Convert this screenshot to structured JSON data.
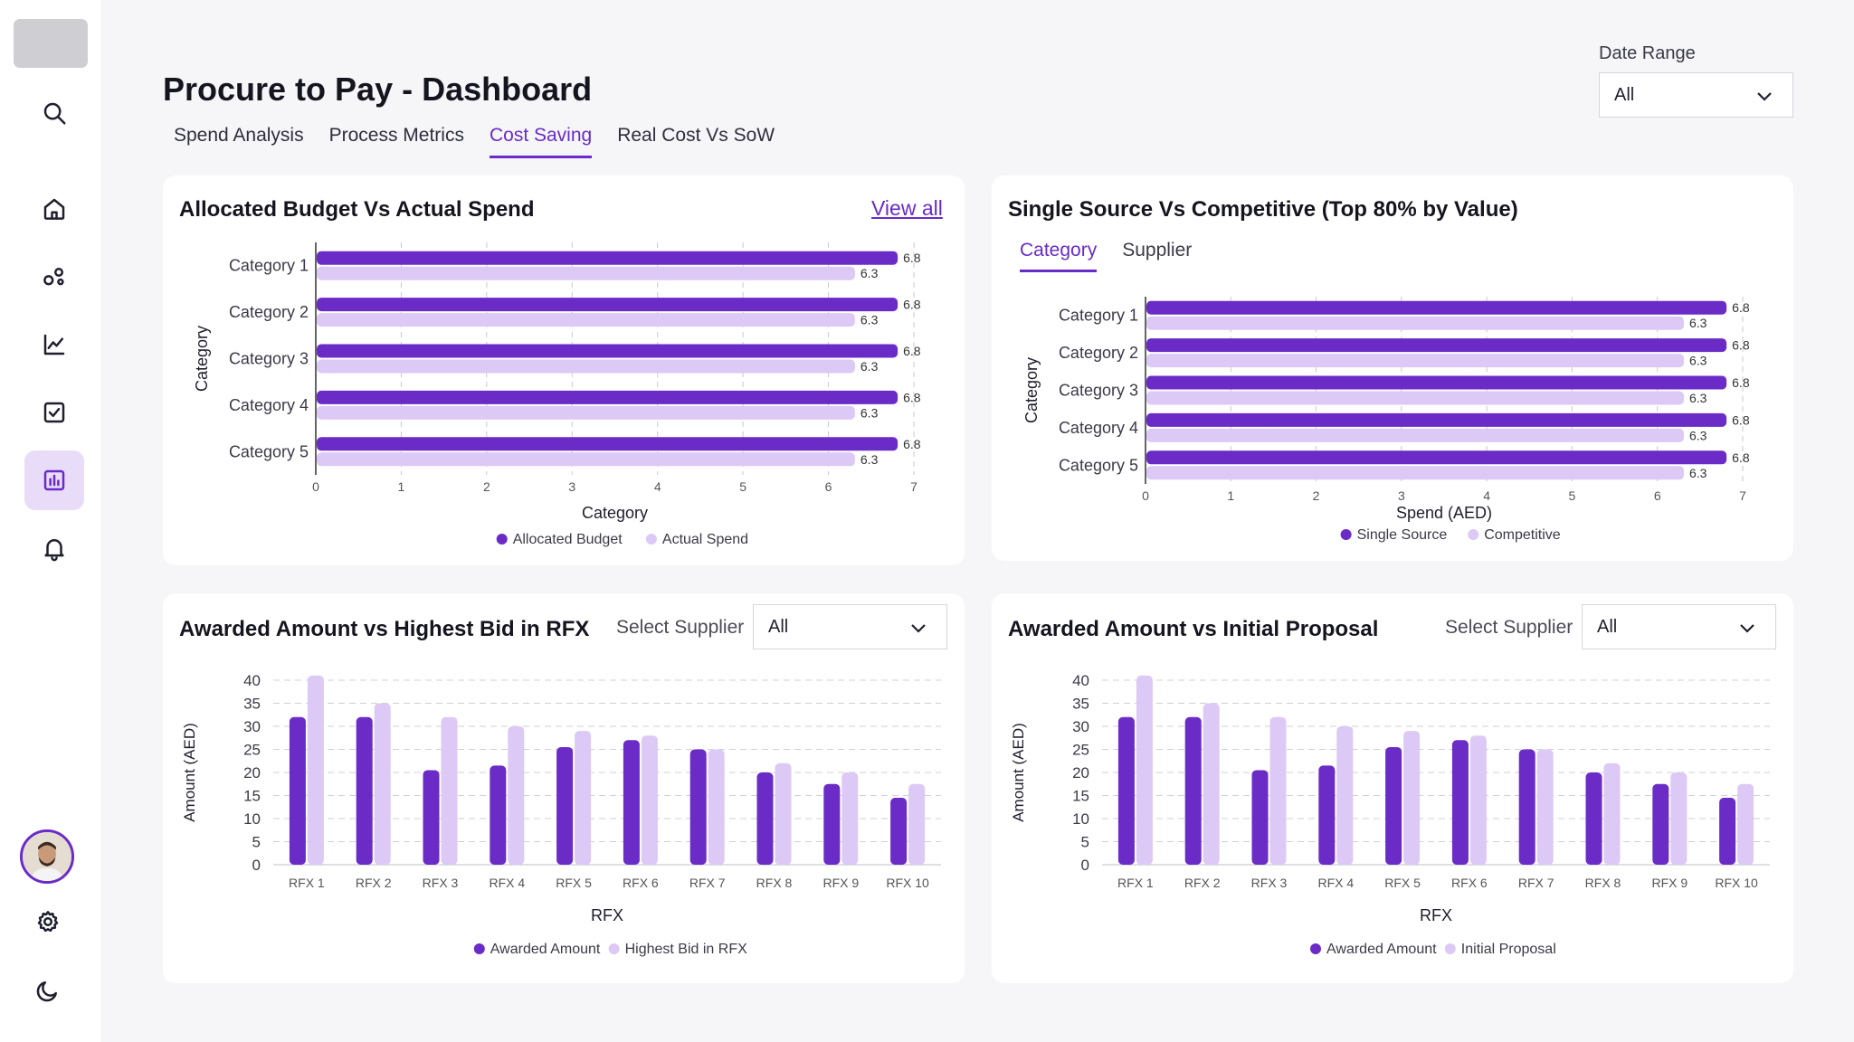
{
  "app": {
    "title": "Procure to Pay - Dashboard",
    "colors": {
      "accent": "#6a2bc7",
      "light": "#dcc9f6",
      "background": "#f6f6f9"
    }
  },
  "sidebar": {
    "items": [
      {
        "name": "search",
        "icon": "search-icon"
      },
      {
        "name": "home",
        "icon": "home-icon"
      },
      {
        "name": "network",
        "icon": "network-icon"
      },
      {
        "name": "analytics",
        "icon": "line-chart-icon"
      },
      {
        "name": "tasks",
        "icon": "checkbox-icon"
      },
      {
        "name": "reports",
        "icon": "bar-chart-icon",
        "active": true
      },
      {
        "name": "notifications",
        "icon": "bell-icon"
      }
    ],
    "bottom": [
      {
        "name": "settings",
        "icon": "gear-icon"
      },
      {
        "name": "theme",
        "icon": "moon-icon"
      }
    ]
  },
  "tabs": [
    {
      "label": "Spend Analysis"
    },
    {
      "label": "Process Metrics"
    },
    {
      "label": "Cost Saving",
      "active": true
    },
    {
      "label": "Real Cost Vs SoW"
    }
  ],
  "date_range": {
    "label": "Date Range",
    "value": "All"
  },
  "cards": {
    "budget": {
      "title": "Allocated Budget Vs Actual Spend",
      "link": "View all"
    },
    "single_source": {
      "title": "Single Source Vs Competitive (Top 80% by Value)",
      "subtabs": [
        "Category",
        "Supplier"
      ]
    },
    "highest_bid": {
      "title": "Awarded Amount vs Highest Bid in RFX",
      "select_label": "Select Supplier",
      "select_value": "All"
    },
    "initial_proposal": {
      "title": "Awarded Amount vs Initial Proposal",
      "select_label": "Select Supplier",
      "select_value": "All"
    }
  },
  "chart_data": [
    {
      "type": "bar",
      "orientation": "horizontal",
      "categories": [
        "Category 1",
        "Category 2",
        "Category 3",
        "Category 4",
        "Category 5"
      ],
      "series": [
        {
          "name": "Allocated Budget",
          "values": [
            6.8,
            6.8,
            6.8,
            6.8,
            6.8
          ]
        },
        {
          "name": "Actual Spend",
          "values": [
            6.3,
            6.3,
            6.3,
            6.3,
            6.3
          ]
        }
      ],
      "xlabel": "Category",
      "ylabel": "Category",
      "xlim": [
        0,
        7
      ],
      "xticks": [
        "0",
        "1",
        "2",
        "3",
        "4",
        "5",
        "6",
        "7"
      ],
      "grid": true,
      "legend": "bottom"
    },
    {
      "type": "bar",
      "orientation": "horizontal",
      "categories": [
        "Category 1",
        "Category 2",
        "Category 3",
        "Category 4",
        "Category 5"
      ],
      "series": [
        {
          "name": "Single Source",
          "values": [
            6.8,
            6.8,
            6.8,
            6.8,
            6.8
          ]
        },
        {
          "name": "Competitive",
          "values": [
            6.3,
            6.3,
            6.3,
            6.3,
            6.3
          ]
        }
      ],
      "xlabel": "Spend (AED)",
      "ylabel": "Category",
      "xlim": [
        0,
        7
      ],
      "xticks": [
        "0",
        "1",
        "2",
        "3",
        "4",
        "5",
        "6",
        "7"
      ],
      "grid": true,
      "legend": "bottom"
    },
    {
      "type": "bar",
      "categories": [
        "RFX 1",
        "RFX 2",
        "RFX 3",
        "RFX 4",
        "RFX 5",
        "RFX 6",
        "RFX 7",
        "RFX 8",
        "RFX 9",
        "RFX 10"
      ],
      "series": [
        {
          "name": "Awarded Amount",
          "values": [
            32,
            32,
            20.5,
            21.5,
            25.5,
            27,
            25,
            20,
            17.5,
            14.5
          ]
        },
        {
          "name": "Highest Bid in RFX",
          "values": [
            41,
            35,
            32,
            30,
            29,
            28,
            25,
            22,
            20,
            17.5
          ]
        }
      ],
      "xlabel": "RFX",
      "ylabel": "Amount (AED)",
      "ylim": [
        0,
        40
      ],
      "yticks": [
        "0",
        "5",
        "10",
        "15",
        "20",
        "25",
        "30",
        "35",
        "40"
      ],
      "grid": true,
      "legend": "bottom"
    },
    {
      "type": "bar",
      "categories": [
        "RFX 1",
        "RFX 2",
        "RFX 3",
        "RFX 4",
        "RFX 5",
        "RFX 6",
        "RFX 7",
        "RFX 8",
        "RFX 9",
        "RFX 10"
      ],
      "series": [
        {
          "name": "Awarded Amount",
          "values": [
            32,
            32,
            20.5,
            21.5,
            25.5,
            27,
            25,
            20,
            17.5,
            14.5
          ]
        },
        {
          "name": "Initial Proposal",
          "values": [
            41,
            35,
            32,
            30,
            29,
            28,
            25,
            22,
            20,
            17.5
          ]
        }
      ],
      "xlabel": "RFX",
      "ylabel": "Amount (AED)",
      "ylim": [
        0,
        40
      ],
      "yticks": [
        "0",
        "5",
        "10",
        "15",
        "20",
        "25",
        "30",
        "35",
        "40"
      ],
      "grid": true,
      "legend": "bottom"
    }
  ]
}
